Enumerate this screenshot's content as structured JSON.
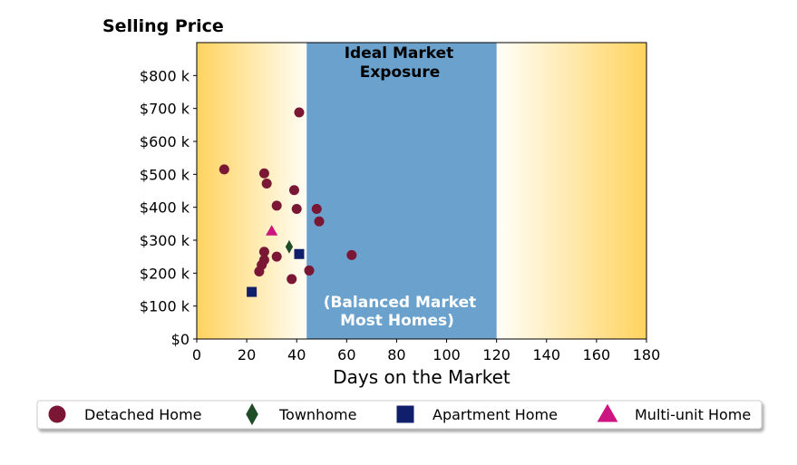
{
  "chart_data": {
    "type": "scatter",
    "title": "Selling Price",
    "xlabel": "Days on the Market",
    "ylabel": "Selling Price",
    "xlim": [
      0,
      180
    ],
    "ylim": [
      0,
      900000
    ],
    "x_ticks": [
      0,
      20,
      40,
      60,
      80,
      100,
      120,
      140,
      160,
      180
    ],
    "x_tick_labels": [
      "0",
      "20",
      "40",
      "60",
      "80",
      "100",
      "120",
      "140",
      "160",
      "180"
    ],
    "y_ticks": [
      0,
      100000,
      200000,
      300000,
      400000,
      500000,
      600000,
      700000,
      800000
    ],
    "y_tick_labels": [
      "$0",
      "$100 k",
      "$200 k",
      "$300 k",
      "$400 k",
      "$500 k",
      "$600 k",
      "$700 k",
      "$800 k"
    ],
    "grid": false,
    "legend_position": "bottom",
    "shaded_region": {
      "x_range": [
        44,
        120
      ],
      "color": "#6aa1cd",
      "label_top": [
        "Ideal Market",
        "Exposure"
      ],
      "label_bottom": [
        "(Balanced Market",
        "Most Homes)"
      ]
    },
    "background_gradient": {
      "edge_color": "#ffd35f",
      "center_color": "#fffef8"
    },
    "series": [
      {
        "name": "Detached Home",
        "marker": "circle",
        "color": "#7a1735",
        "points": [
          [
            11,
            515000
          ],
          [
            41,
            688000
          ],
          [
            27,
            503000
          ],
          [
            28,
            472000
          ],
          [
            39,
            452000
          ],
          [
            32,
            405000
          ],
          [
            40,
            395000
          ],
          [
            48,
            395000
          ],
          [
            49,
            357000
          ],
          [
            27,
            265000
          ],
          [
            27,
            240000
          ],
          [
            32,
            250000
          ],
          [
            26,
            225000
          ],
          [
            25,
            205000
          ],
          [
            45,
            208000
          ],
          [
            38,
            182000
          ],
          [
            62,
            255000
          ]
        ]
      },
      {
        "name": "Townhome",
        "marker": "diamond",
        "color": "#1e4d28",
        "points": [
          [
            37,
            280000
          ]
        ]
      },
      {
        "name": "Apartment Home",
        "marker": "square",
        "color": "#0f1f6b",
        "points": [
          [
            41,
            258000
          ],
          [
            22,
            143000
          ]
        ]
      },
      {
        "name": "Multi-unit Home",
        "marker": "triangle",
        "color": "#cc1580",
        "points": [
          [
            30,
            328000
          ]
        ]
      }
    ]
  }
}
